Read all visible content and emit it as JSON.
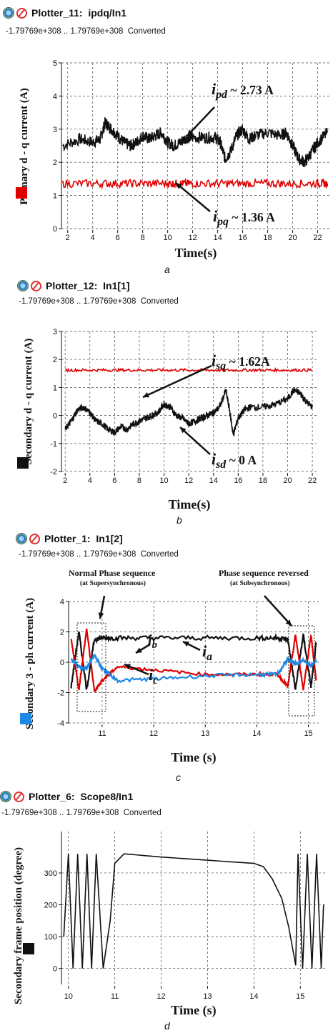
{
  "panels": [
    {
      "id": "a",
      "header": {
        "title": "Plotter_11:  ipdq/In1",
        "range": "-1.79769e+308 .. 1.79769e+308  Converted"
      },
      "caption": "a",
      "chart_data": {
        "type": "line",
        "ylabel": "Primary  d - q current  (A)",
        "xlabel": "Time(s)",
        "xlim": [
          1.5,
          23
        ],
        "ylim": [
          0,
          5
        ],
        "xticks": [
          2,
          4,
          6,
          8,
          10,
          12,
          14,
          16,
          18,
          20,
          22
        ],
        "yticks": [
          0,
          1,
          2,
          3,
          4,
          5
        ],
        "legend_color": "#e00000",
        "series": [
          {
            "color": "#111111",
            "x": [
              1.6,
              3,
              4,
              4.6,
              5,
              5.5,
              6,
              6.5,
              7,
              7.5,
              8,
              8.5,
              9,
              9.5,
              10,
              10.5,
              11,
              11.5,
              12,
              13,
              13.8,
              14.2,
              14.6,
              15,
              15.5,
              16,
              16.5,
              17,
              18,
              19,
              19.5,
              20,
              20.5,
              21,
              21.5,
              22,
              22.8
            ],
            "y": [
              2.5,
              2.7,
              2.6,
              2.7,
              3.2,
              3.0,
              2.8,
              2.6,
              2.5,
              2.6,
              2.8,
              2.7,
              2.8,
              2.9,
              2.6,
              2.5,
              2.6,
              2.75,
              2.75,
              2.75,
              2.75,
              2.6,
              2.1,
              2.3,
              2.8,
              3.0,
              2.7,
              2.8,
              2.9,
              2.8,
              2.9,
              2.5,
              2.1,
              2.0,
              2.3,
              2.6,
              2.9
            ],
            "noise": 0.18
          },
          {
            "color": "#e00000",
            "x": [
              1.6,
              4,
              6,
              8,
              10,
              11,
              12,
              14,
              16,
              18,
              20,
              22,
              22.8
            ],
            "y": [
              1.36,
              1.36,
              1.36,
              1.36,
              1.36,
              1.36,
              1.36,
              1.36,
              1.36,
              1.36,
              1.36,
              1.36,
              1.36
            ],
            "noise": 0.12
          }
        ],
        "annotations": [
          {
            "sym": "i",
            "sub": "pd",
            "rest": " ~ 2.73 A"
          },
          {
            "sym": "i",
            "sub": "pq",
            "rest": " ~ 1.36 A"
          }
        ]
      }
    },
    {
      "id": "b",
      "header": {
        "title": "Plotter_12:  In1[1]",
        "range": "-1.79769e+308 .. 1.79769e+308  Converted"
      },
      "caption": "b",
      "chart_data": {
        "type": "line",
        "ylabel": "Secondary  d - q current  (A)",
        "xlabel": "Time(s)",
        "xlim": [
          1.7,
          22.4
        ],
        "ylim": [
          -2,
          3
        ],
        "xticks": [
          2,
          4,
          6,
          8,
          10,
          12,
          14,
          16,
          18,
          20,
          22
        ],
        "yticks": [
          -2,
          -1,
          0,
          1,
          2,
          3
        ],
        "legend_color": "#111111",
        "series": [
          {
            "color": "#e00000",
            "x": [
              2,
              4,
              6,
              8,
              10,
              12,
              14,
              16,
              18,
              20,
              22
            ],
            "y": [
              1.62,
              1.62,
              1.62,
              1.62,
              1.62,
              1.62,
              1.62,
              1.62,
              1.62,
              1.62,
              1.62
            ],
            "noise": 0.05
          },
          {
            "color": "#111111",
            "x": [
              2,
              2.5,
              3,
              3.5,
              4,
              4.5,
              5,
              5.5,
              6,
              6.5,
              7,
              7.5,
              8,
              8.5,
              9,
              9.5,
              10,
              10.5,
              11,
              11.5,
              12,
              12.5,
              13,
              13.5,
              14,
              14.5,
              15,
              15.3,
              15.6,
              16,
              16.5,
              17,
              18,
              19,
              20,
              20.5,
              21,
              21.5,
              22
            ],
            "y": [
              -0.5,
              -0.2,
              0.2,
              0.3,
              0.1,
              -0.2,
              -0.3,
              -0.5,
              -0.6,
              -0.4,
              -0.5,
              -0.3,
              -0.2,
              -0.1,
              0.0,
              0.1,
              0.4,
              0.3,
              0.0,
              -0.1,
              -0.3,
              -0.2,
              -0.1,
              0.0,
              0.1,
              0.3,
              0.9,
              0.2,
              -0.7,
              -0.1,
              0.2,
              0.3,
              0.3,
              0.4,
              0.6,
              0.9,
              0.8,
              0.5,
              0.3
            ],
            "noise": 0.12
          }
        ],
        "annotations": [
          {
            "sym": "i",
            "sub": "sq",
            "rest": " ~ 1.62A"
          },
          {
            "sym": "i",
            "sub": "sd",
            "rest": " ~ 0 A"
          }
        ]
      }
    },
    {
      "id": "c",
      "header": {
        "title": "Plotter_1:  In1[2]",
        "range": "-1.79769e+308 .. 1.79769e+308  Converted"
      },
      "caption": "c",
      "chart_data": {
        "type": "line",
        "ylabel": "Secondary 3 - ph current (A)",
        "xlabel": "Time  (s)",
        "xlim": [
          10.35,
          15.2
        ],
        "ylim": [
          -4,
          4
        ],
        "xticks": [
          11,
          12,
          13,
          14,
          15
        ],
        "yticks": [
          -4,
          -2,
          0,
          2,
          4
        ],
        "legend_color": "#1e88e5",
        "series": [
          {
            "color": "#111111",
            "name": "i_a",
            "x": [
              10.4,
              10.55,
              10.7,
              10.85,
              11.0,
              11.3,
              12,
              13,
              14,
              14.4,
              14.6,
              14.75,
              14.9,
              15.05,
              15.15
            ],
            "y": [
              -1.6,
              2.0,
              -1.8,
              1.5,
              1.6,
              1.6,
              1.6,
              1.6,
              1.6,
              1.6,
              1.5,
              -1.8,
              1.8,
              -1.6,
              1.2
            ],
            "noise": 0.15
          },
          {
            "color": "#e00000",
            "name": "i_b",
            "x": [
              10.4,
              10.55,
              10.7,
              10.85,
              11.0,
              11.3,
              12,
              13,
              14,
              14.4,
              14.6,
              14.75,
              14.9,
              15.05,
              15.15
            ],
            "y": [
              1.5,
              -1.8,
              2.2,
              -1.9,
              -1.2,
              -0.3,
              -0.5,
              -0.8,
              -0.8,
              -0.8,
              -1.6,
              1.8,
              -1.8,
              1.8,
              -1.2
            ],
            "noise": 0.1
          },
          {
            "color": "#1e88e5",
            "name": "i_c",
            "x": [
              10.4,
              10.55,
              10.7,
              10.85,
              11.0,
              11.3,
              12,
              13,
              14,
              14.4,
              14.6,
              14.75,
              14.9,
              15.05,
              15.15
            ],
            "y": [
              0.2,
              -0.3,
              -0.4,
              0.5,
              -0.4,
              -1.2,
              -1.1,
              -0.9,
              -0.8,
              -0.8,
              0.2,
              -0.1,
              0.1,
              -0.2,
              0.1
            ],
            "noise": 0.12
          }
        ],
        "annotations": [
          {
            "text": "Normal Phase sequence",
            "small": "(at Supersynchronous)"
          },
          {
            "text": "Phase sequence reversed",
            "small": "(at Subsynchronous)"
          },
          {
            "sym": "i",
            "sub": "a",
            "rest": ""
          },
          {
            "sym": "i",
            "sub": "b",
            "rest": ""
          },
          {
            "sym": "i",
            "sub": "c",
            "rest": ""
          }
        ]
      }
    },
    {
      "id": "d",
      "header": {
        "title": "Plotter_6:  Scope8/In1",
        "range": "-1.79769e+308 .. 1.79769e+308  Converted"
      },
      "caption": "d",
      "chart_data": {
        "type": "line",
        "ylabel": "Secondary  frame position (degree)",
        "xlabel": "Time   (s)",
        "xlim": [
          9.85,
          15.55
        ],
        "ylim": [
          -50,
          430
        ],
        "xticks": [
          10,
          11,
          12,
          13,
          14,
          15
        ],
        "yticks": [
          0,
          100,
          200,
          300
        ],
        "legend_color": "#111111",
        "series": [
          {
            "color": "#111111",
            "x": [
              9.9,
              10.0,
              10.1,
              10.2,
              10.3,
              10.4,
              10.5,
              10.6,
              10.75,
              10.9,
              11.0,
              11.2,
              12,
              13,
              14,
              14.2,
              14.4,
              14.6,
              14.75,
              14.9,
              14.95,
              15.05,
              15.15,
              15.25,
              15.35,
              15.45,
              15.5
            ],
            "y": [
              100,
              360,
              0,
              360,
              0,
              360,
              0,
              360,
              0,
              150,
              330,
              360,
              350,
              340,
              330,
              320,
              280,
              220,
              130,
              10,
              360,
              0,
              360,
              0,
              360,
              0,
              200
            ],
            "noise": 0
          }
        ],
        "annotations": []
      }
    }
  ]
}
